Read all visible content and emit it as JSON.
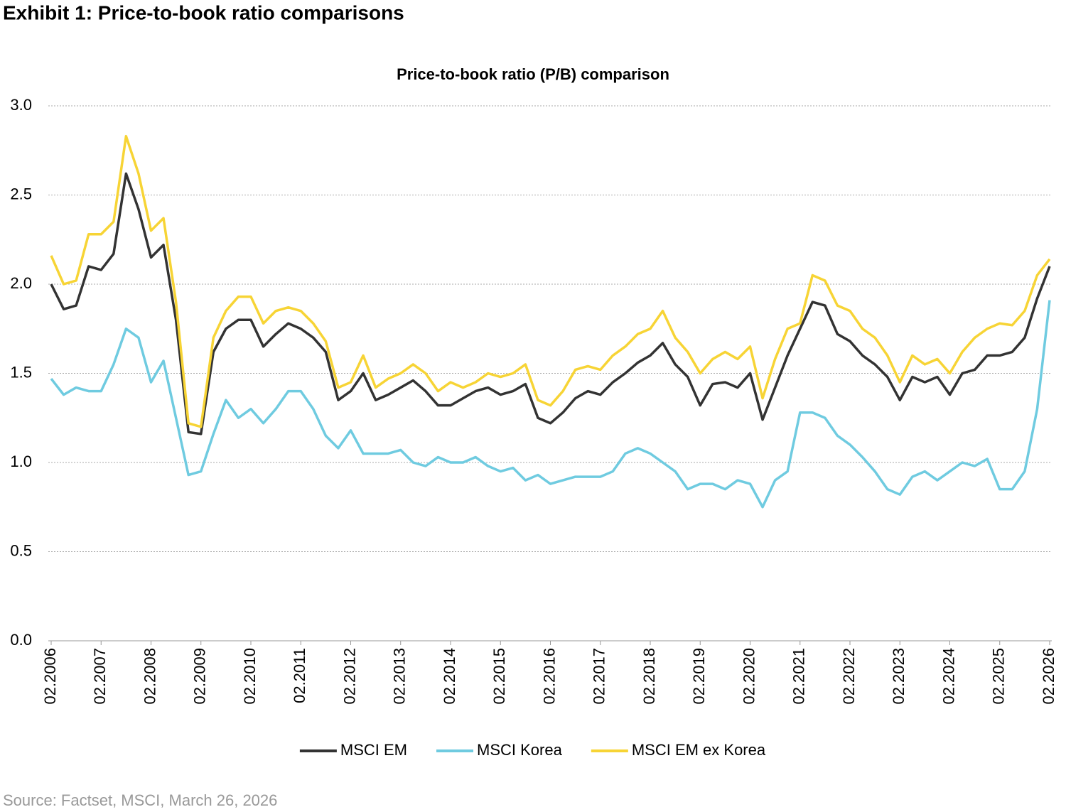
{
  "title": "Exhibit 1: Price-to-book ratio comparisons",
  "source": "Source: Factset, MSCI, March 26, 2026",
  "chart_data": {
    "type": "line",
    "title": "Price-to-book ratio (P/B) comparison",
    "categories": [
      "02.2006",
      null,
      null,
      null,
      "02.2007",
      null,
      null,
      null,
      "02.2008",
      null,
      null,
      null,
      "02.2009",
      null,
      null,
      null,
      "02.2010",
      null,
      null,
      null,
      "02.2011",
      null,
      null,
      null,
      "02.2012",
      null,
      null,
      null,
      "02.2013",
      null,
      null,
      null,
      "02.2014",
      null,
      null,
      null,
      "02.2015",
      null,
      null,
      null,
      "02.2016",
      null,
      null,
      null,
      "02.2017",
      null,
      null,
      null,
      "02.2018",
      null,
      null,
      null,
      "02.2019",
      null,
      null,
      null,
      "02.2020",
      null,
      null,
      null,
      "02.2021",
      null,
      null,
      null,
      "02.2022",
      null,
      null,
      null,
      "02.2023",
      null,
      null,
      null,
      "02.2024",
      null,
      null,
      null,
      "02.2025",
      null,
      null,
      null,
      "02.2026"
    ],
    "series": [
      {
        "name": "MSCI EM",
        "color": "#333333",
        "values": [
          2.0,
          1.86,
          1.88,
          2.1,
          2.08,
          2.17,
          2.62,
          2.42,
          2.15,
          2.22,
          1.8,
          1.17,
          1.16,
          1.62,
          1.75,
          1.8,
          1.8,
          1.65,
          1.72,
          1.78,
          1.75,
          1.7,
          1.62,
          1.35,
          1.4,
          1.5,
          1.35,
          1.38,
          1.42,
          1.46,
          1.4,
          1.32,
          1.32,
          1.36,
          1.4,
          1.42,
          1.38,
          1.4,
          1.44,
          1.25,
          1.22,
          1.28,
          1.36,
          1.4,
          1.38,
          1.45,
          1.5,
          1.56,
          1.6,
          1.67,
          1.55,
          1.48,
          1.32,
          1.44,
          1.45,
          1.42,
          1.5,
          1.24,
          1.42,
          1.6,
          1.75,
          1.9,
          1.88,
          1.72,
          1.68,
          1.6,
          1.55,
          1.48,
          1.35,
          1.48,
          1.45,
          1.48,
          1.38,
          1.5,
          1.52,
          1.6,
          1.6,
          1.62,
          1.7,
          1.92,
          2.1
        ]
      },
      {
        "name": "MSCI Korea",
        "color": "#6fcbe0",
        "values": [
          1.47,
          1.38,
          1.42,
          1.4,
          1.4,
          1.55,
          1.75,
          1.7,
          1.45,
          1.57,
          1.25,
          0.93,
          0.95,
          1.16,
          1.35,
          1.25,
          1.3,
          1.22,
          1.3,
          1.4,
          1.4,
          1.3,
          1.15,
          1.08,
          1.18,
          1.05,
          1.05,
          1.05,
          1.07,
          1.0,
          0.98,
          1.03,
          1.0,
          1.0,
          1.03,
          0.98,
          0.95,
          0.97,
          0.9,
          0.93,
          0.88,
          0.9,
          0.92,
          0.92,
          0.92,
          0.95,
          1.05,
          1.08,
          1.05,
          1.0,
          0.95,
          0.85,
          0.88,
          0.88,
          0.85,
          0.9,
          0.88,
          0.75,
          0.9,
          0.95,
          1.28,
          1.28,
          1.25,
          1.15,
          1.1,
          1.03,
          0.95,
          0.85,
          0.82,
          0.92,
          0.95,
          0.9,
          0.95,
          1.0,
          0.98,
          1.02,
          0.85,
          0.85,
          0.95,
          1.3,
          1.91
        ]
      },
      {
        "name": "MSCI EM ex Korea",
        "color": "#f7d435",
        "values": [
          2.16,
          2.0,
          2.02,
          2.28,
          2.28,
          2.35,
          2.83,
          2.62,
          2.3,
          2.37,
          1.9,
          1.22,
          1.2,
          1.7,
          1.85,
          1.93,
          1.93,
          1.78,
          1.85,
          1.87,
          1.85,
          1.78,
          1.68,
          1.42,
          1.45,
          1.6,
          1.42,
          1.47,
          1.5,
          1.55,
          1.5,
          1.4,
          1.45,
          1.42,
          1.45,
          1.5,
          1.48,
          1.5,
          1.55,
          1.35,
          1.32,
          1.4,
          1.52,
          1.54,
          1.52,
          1.6,
          1.65,
          1.72,
          1.75,
          1.85,
          1.7,
          1.62,
          1.5,
          1.58,
          1.62,
          1.58,
          1.65,
          1.36,
          1.58,
          1.75,
          1.78,
          2.05,
          2.02,
          1.88,
          1.85,
          1.75,
          1.7,
          1.6,
          1.45,
          1.6,
          1.55,
          1.58,
          1.5,
          1.62,
          1.7,
          1.75,
          1.78,
          1.77,
          1.85,
          2.05,
          2.14
        ]
      }
    ],
    "ylim": [
      0,
      3
    ],
    "yticks": [
      {
        "value": 0,
        "label": "0.0"
      },
      0.5,
      {
        "value": 1,
        "label": "1.0"
      },
      1.5,
      {
        "value": 2,
        "label": "2.0"
      },
      2.5,
      {
        "value": 3,
        "label": "3.0"
      }
    ],
    "grid": true,
    "legend": "bottom"
  }
}
